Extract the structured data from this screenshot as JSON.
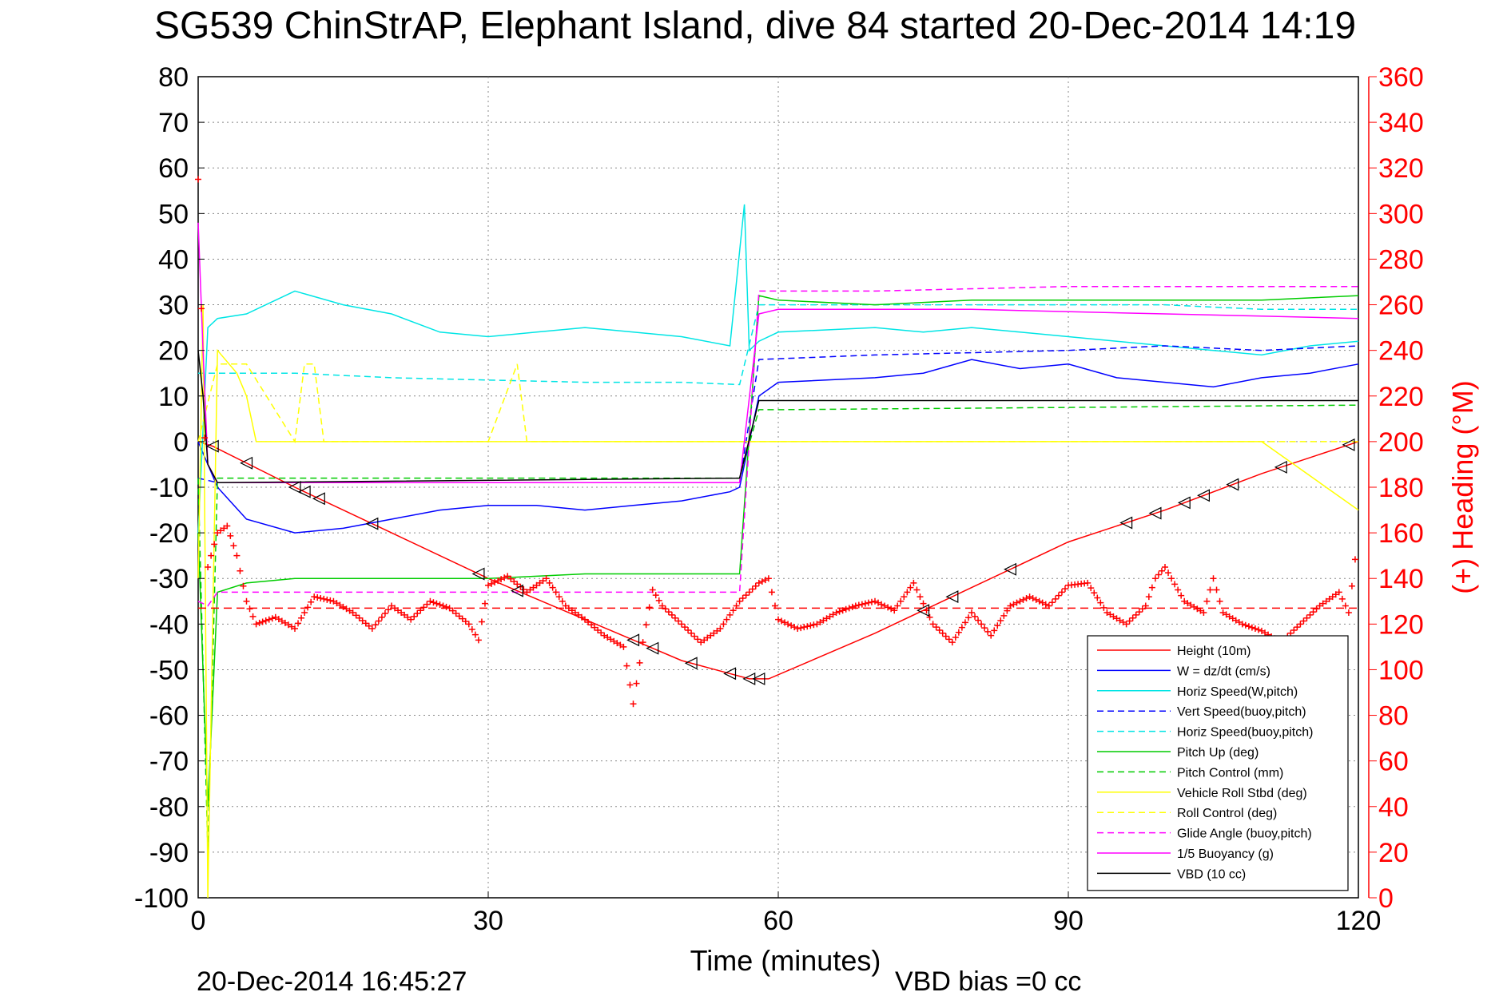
{
  "chart_data": {
    "type": "line",
    "title": "SG539 ChinStrAP, Elephant Island, dive 84 started 20-Dec-2014 14:19",
    "xlabel": "Time (minutes)",
    "ylabel_right": "(+) Heading (°M)",
    "footer_date": "20-Dec-2014 16:45:27",
    "footer_note": "VBD bias =0 cc",
    "xlim": [
      0,
      120
    ],
    "ylim": [
      -100,
      80
    ],
    "ylim_right": [
      0,
      360
    ],
    "x_ticks": [
      "0",
      "30",
      "60",
      "90",
      "120"
    ],
    "y_ticks": [
      "80",
      "70",
      "60",
      "50",
      "40",
      "30",
      "20",
      "10",
      "0",
      "-10",
      "-20",
      "-30",
      "-40",
      "-50",
      "-60",
      "-70",
      "-80",
      "-90",
      "-100"
    ],
    "y_ticks_right": [
      "360",
      "340",
      "320",
      "300",
      "280",
      "260",
      "240",
      "220",
      "200",
      "180",
      "160",
      "140",
      "120",
      "100",
      "80",
      "60",
      "40",
      "20",
      "0"
    ],
    "grid": true,
    "legend_position": "bottom-right",
    "colors": {
      "axis": "#000000",
      "right_axis": "#ff0000",
      "grid": "#888888"
    },
    "series": [
      {
        "name": "Height (10m)",
        "color": "#ff0000",
        "dash": "solid",
        "x": [
          0,
          1.5,
          10,
          20,
          30,
          40,
          50,
          57,
          59,
          70,
          80,
          90,
          100,
          110,
          120
        ],
        "y": [
          0,
          -1,
          -10,
          -20,
          -30,
          -39,
          -48,
          -52,
          -52,
          -42,
          -32,
          -22,
          -15,
          -7,
          0
        ]
      },
      {
        "name": "W = dz/dt (cm/s)",
        "color": "#0000ff",
        "dash": "solid",
        "x": [
          0,
          1,
          2,
          5,
          10,
          15,
          20,
          25,
          30,
          35,
          40,
          45,
          50,
          55,
          56,
          58,
          60,
          70,
          75,
          80,
          85,
          90,
          95,
          100,
          105,
          110,
          115,
          120
        ],
        "y": [
          0,
          -5,
          -10,
          -17,
          -20,
          -19,
          -17,
          -15,
          -14,
          -14,
          -15,
          -14,
          -13,
          -11,
          -10,
          10,
          13,
          14,
          15,
          18,
          16,
          17,
          14,
          13,
          12,
          14,
          15,
          17
        ]
      },
      {
        "name": "Horiz Speed(W,pitch)",
        "color": "#00e5e5",
        "dash": "solid",
        "x": [
          0,
          1,
          2,
          5,
          10,
          15,
          20,
          25,
          30,
          35,
          40,
          45,
          50,
          55,
          56.5,
          57,
          58,
          60,
          70,
          75,
          80,
          85,
          90,
          95,
          100,
          105,
          110,
          115,
          120
        ],
        "y": [
          -20,
          25,
          27,
          28,
          33,
          30,
          28,
          24,
          23,
          24,
          25,
          24,
          23,
          21,
          52,
          20,
          22,
          24,
          25,
          24,
          25,
          24,
          23,
          22,
          21,
          20,
          19,
          21,
          22
        ]
      },
      {
        "name": "Vert Speed(buoy,pitch)",
        "color": "#0000ff",
        "dash": "dashed",
        "x": [
          0,
          2,
          56,
          58,
          70,
          90,
          100,
          110,
          120
        ],
        "y": [
          -8,
          -9,
          -9,
          18,
          19,
          20,
          21,
          20,
          21
        ]
      },
      {
        "name": "Horiz Speed(buoy,pitch)",
        "color": "#00e5e5",
        "dash": "dashed",
        "x": [
          0,
          2,
          10,
          20,
          30,
          40,
          50,
          56,
          58,
          70,
          90,
          100,
          110,
          120
        ],
        "y": [
          15,
          15,
          15,
          14,
          13.5,
          13,
          13,
          12.5,
          30,
          30,
          30,
          30,
          29,
          29
        ]
      },
      {
        "name": "Pitch Up (deg)",
        "color": "#00cc00",
        "dash": "solid",
        "x": [
          0,
          1,
          2,
          5,
          10,
          20,
          30,
          40,
          50,
          56,
          58,
          60,
          70,
          80,
          90,
          100,
          110,
          120
        ],
        "y": [
          -20,
          -80,
          -33,
          -31,
          -30,
          -30,
          -30,
          -29,
          -29,
          -29,
          32,
          31,
          30,
          31,
          31,
          31,
          31,
          32
        ]
      },
      {
        "name": "Pitch Control (mm)",
        "color": "#00cc00",
        "dash": "dashed",
        "x": [
          0,
          1,
          2,
          56,
          58,
          60,
          90,
          120
        ],
        "y": [
          -8,
          -90,
          -8,
          -8,
          7,
          7,
          7.5,
          8
        ]
      },
      {
        "name": "Vehicle Roll Stbd (deg)",
        "color": "#ffff00",
        "dash": "solid",
        "x": [
          0,
          0.5,
          1,
          2,
          4,
          5,
          6,
          10,
          20,
          30,
          40,
          50,
          60,
          70,
          80,
          90,
          100,
          110,
          120
        ],
        "y": [
          -30,
          30,
          -100,
          20,
          15,
          10,
          0,
          0,
          0,
          0,
          0,
          0,
          0,
          0,
          0,
          0,
          0,
          0,
          -15
        ]
      },
      {
        "name": "Roll Control (deg)",
        "color": "#ffff00",
        "dash": "dashed",
        "x": [
          0,
          2,
          5,
          10,
          11,
          12,
          13,
          20,
          30,
          33,
          34,
          40,
          60,
          80,
          100,
          120
        ],
        "y": [
          0,
          17,
          17,
          0,
          17,
          17,
          0,
          0,
          0,
          17,
          0,
          0,
          0,
          0,
          0,
          0
        ]
      },
      {
        "name": "Glide Angle (buoy,pitch)",
        "color": "#ff00ff",
        "dash": "dashed",
        "x": [
          0,
          1,
          2,
          10,
          30,
          56,
          58,
          70,
          90,
          120
        ],
        "y": [
          -35,
          -36,
          -33,
          -33,
          -33,
          -33,
          33,
          33,
          34,
          34
        ]
      },
      {
        "name": "1/5 Buoyancy (g)",
        "color": "#ff00ff",
        "dash": "solid",
        "x": [
          0,
          0.5,
          1,
          2,
          56,
          58,
          60,
          80,
          100,
          110,
          120
        ],
        "y": [
          48,
          20,
          -5,
          -9,
          -9,
          28,
          29,
          29,
          28,
          27.5,
          27
        ]
      },
      {
        "name": "VBD (10 cc)",
        "color": "#000000",
        "dash": "solid",
        "x": [
          0,
          0.5,
          1,
          2,
          56,
          58,
          60,
          80,
          100,
          120
        ],
        "y": [
          20,
          10,
          -5,
          -9,
          -8,
          9,
          9,
          9,
          9,
          9
        ]
      }
    ],
    "heading_series": {
      "color": "#ff0000",
      "marker": "+",
      "axis": "right",
      "x": [
        0,
        1,
        2,
        3,
        4,
        5,
        6,
        8,
        10,
        12,
        14,
        16,
        18,
        20,
        22,
        24,
        26,
        28,
        29,
        30,
        32,
        34,
        36,
        38,
        40,
        42,
        44,
        45,
        46,
        47,
        48,
        50,
        52,
        54,
        56,
        58,
        59,
        60,
        62,
        64,
        66,
        68,
        70,
        72,
        74,
        76,
        78,
        80,
        82,
        84,
        86,
        88,
        90,
        92,
        94,
        96,
        98,
        99,
        100,
        102,
        104,
        105,
        106,
        108,
        110,
        112,
        114,
        116,
        118,
        119,
        120
      ],
      "y": [
        315,
        145,
        160,
        163,
        150,
        130,
        120,
        123,
        118,
        132,
        130,
        125,
        118,
        128,
        122,
        130,
        127,
        120,
        113,
        137,
        141,
        134,
        140,
        128,
        122,
        115,
        110,
        85,
        112,
        135,
        128,
        120,
        112,
        118,
        130,
        138,
        140,
        122,
        118,
        120,
        125,
        128,
        130,
        126,
        138,
        120,
        112,
        125,
        115,
        128,
        132,
        128,
        137,
        138,
        125,
        120,
        128,
        140,
        145,
        130,
        125,
        140,
        125,
        120,
        117,
        112,
        120,
        128,
        134,
        125,
        160
      ]
    },
    "heading_target": {
      "color": "#ff0000",
      "dash": "dashed",
      "value": 127,
      "axis": "right"
    }
  }
}
